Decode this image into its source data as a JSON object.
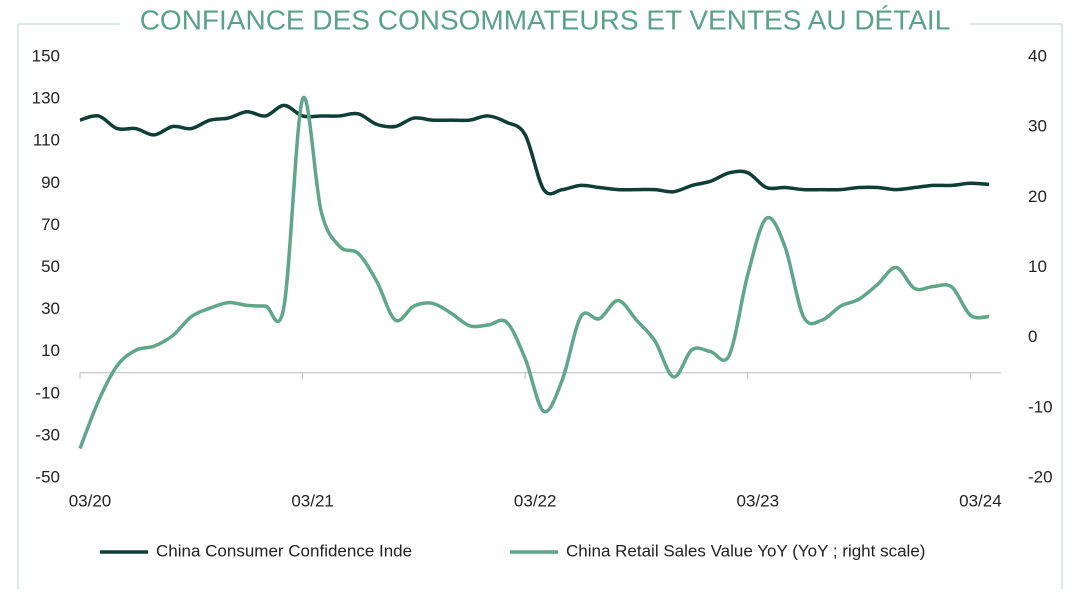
{
  "chart_data": {
    "type": "line",
    "title": "CONFIANCE DES CONSOMMATEURS ET VENTES AU DÉTAIL",
    "categories": [
      "03/20",
      null,
      null,
      null,
      null,
      null,
      null,
      null,
      null,
      null,
      null,
      null,
      "03/21",
      null,
      null,
      null,
      null,
      null,
      null,
      null,
      null,
      null,
      null,
      null,
      "03/22",
      null,
      null,
      null,
      null,
      null,
      null,
      null,
      null,
      null,
      null,
      null,
      "03/23",
      null,
      null,
      null,
      null,
      null,
      null,
      null,
      null,
      null,
      null,
      null,
      "03/24",
      null
    ],
    "series": [
      {
        "name": "China Consumer Confidence Inde",
        "color": "#0e3e35",
        "axis": "y",
        "values": [
          120,
          122,
          116,
          116,
          113,
          117,
          116,
          120,
          121,
          124,
          122,
          127,
          122,
          122,
          122,
          123,
          118,
          117,
          121,
          120,
          120,
          120,
          122,
          119,
          113,
          87,
          87,
          89,
          88,
          87,
          87,
          87,
          86,
          89,
          91,
          95,
          95,
          88,
          88,
          87,
          87,
          87,
          88,
          88,
          87,
          88,
          89,
          89,
          90,
          89.5
        ]
      },
      {
        "name": "China Retail Sales Value YoY (YoY ; right scale)",
        "color": "#5fa68a",
        "axis": "y2",
        "values": [
          -15.8,
          -9,
          -4,
          -1.8,
          -1.2,
          0.3,
          3,
          4.2,
          5,
          4.6,
          4.5,
          4.5,
          34,
          18,
          13,
          12,
          8,
          2.5,
          4.5,
          4.9,
          3.5,
          1.7,
          1.8,
          2.2,
          -3,
          -10.5,
          -6,
          3,
          2.7,
          5.3,
          2.5,
          -0.5,
          -5.6,
          -1.7,
          -2,
          -2.5,
          9,
          17,
          13,
          3,
          2.5,
          4.5,
          5.5,
          7.6,
          10,
          7,
          7.3,
          7.2,
          3.2,
          3
        ]
      }
    ],
    "ylim": [
      -50,
      150
    ],
    "yticks": [
      150,
      130,
      110,
      90,
      70,
      50,
      30,
      10,
      -10,
      -30,
      -50
    ],
    "y2lim": [
      -20,
      40
    ],
    "y2ticks": [
      40,
      30,
      20,
      10,
      0,
      -10,
      -20
    ],
    "grid": false,
    "legend": "bottom"
  }
}
